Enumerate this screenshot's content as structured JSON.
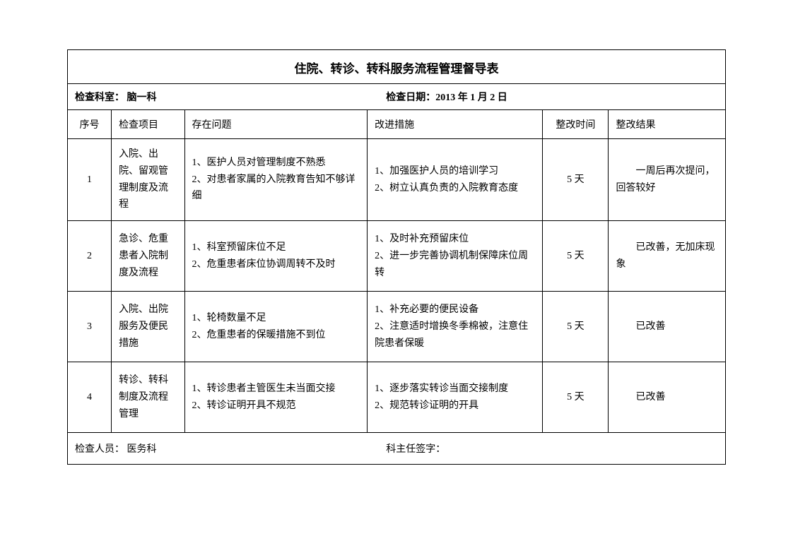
{
  "title": "住院、转诊、转科服务流程管理督导表",
  "info": {
    "dept_label": "检查科室：",
    "dept_value": " 脑一科",
    "date_label": "检查日期：",
    "date_value": "2013 年 1 月 2 日"
  },
  "columns": {
    "seq": "序号",
    "item": "检查项目",
    "problem": "存在问题",
    "measure": "改进措施",
    "time": "整改时间",
    "result": "整改结果"
  },
  "rows": [
    {
      "seq": "1",
      "item": "入院、出院、留观管理制度及流程",
      "problem": "1、医护人员对管理制度不熟悉\n2、对患者家属的入院教育告知不够详细",
      "measure": "1、加强医护人员的培训学习\n2、树立认真负责的入院教育态度",
      "time": "5 天",
      "result": "　　一周后再次提问，回答较好"
    },
    {
      "seq": "2",
      "item": "急诊、危重患者入院制度及流程",
      "problem": "1、科室预留床位不足\n2、危重患者床位协调周转不及时",
      "measure": "1、及时补充预留床位\n2、进一步完善协调机制保障床位周转",
      "time": "5 天",
      "result": "　　已改善，无加床现象"
    },
    {
      "seq": "3",
      "item": "入院、出院服务及便民措施",
      "problem": "1、轮椅数量不足\n2、危重患者的保暖措施不到位",
      "measure": "1、补充必要的便民设备\n2、注意适时增换冬季棉被，注意住院患者保暖",
      "time": "5 天",
      "result": "　　已改善"
    },
    {
      "seq": "4",
      "item": "转诊、转科制度及流程管理",
      "problem": "1、转诊患者主管医生未当面交接\n2、转诊证明开具不规范",
      "measure": "1、逐步落实转诊当面交接制度\n2、规范转诊证明的开具",
      "time": "5 天",
      "result": "　　已改善"
    }
  ],
  "footer": {
    "inspector_label": "检查人员：",
    "inspector_value": " 医务科",
    "sign_label": "科主任签字："
  },
  "style": {
    "font_family": "SimSun",
    "border_color": "#000000",
    "background_color": "#ffffff",
    "title_fontsize": 17,
    "body_fontsize": 14
  }
}
